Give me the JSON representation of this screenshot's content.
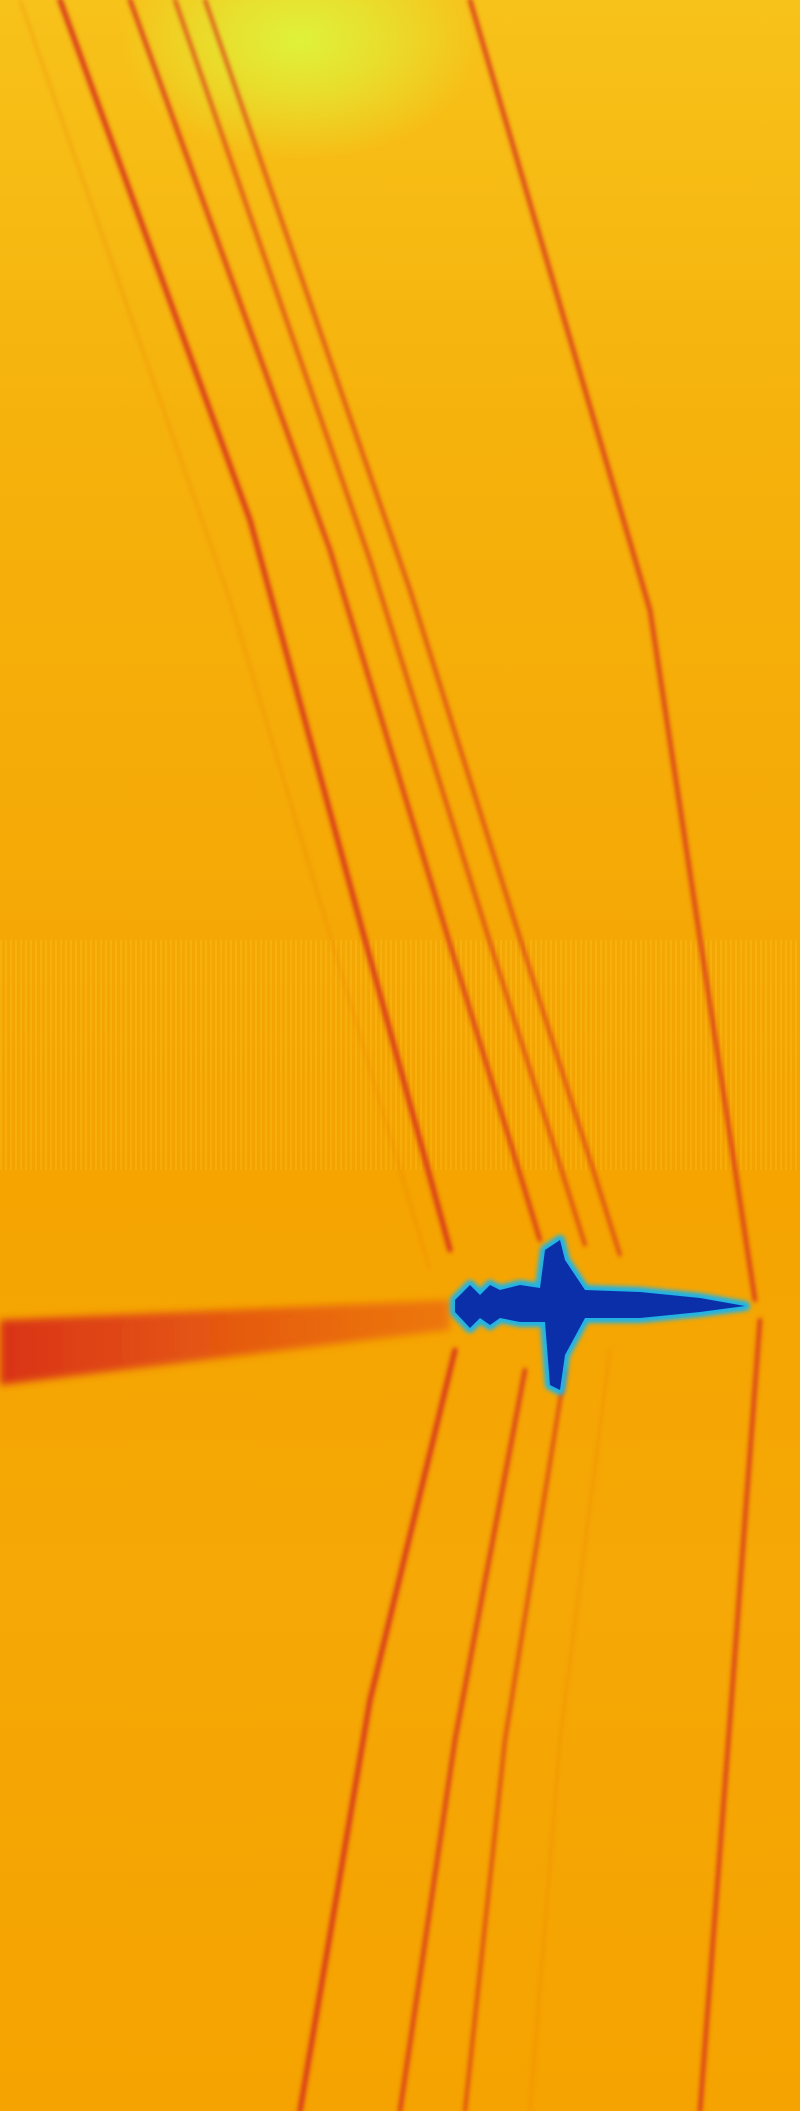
{
  "image": {
    "subject": "aircraft-shockwave-schlieren",
    "palette": {
      "background": "#f5a800",
      "highlight": "#e2f53a",
      "shock_line": "#e2321a",
      "aircraft": "#0a2fa8",
      "aircraft_edge": "#1fb4e8"
    }
  }
}
